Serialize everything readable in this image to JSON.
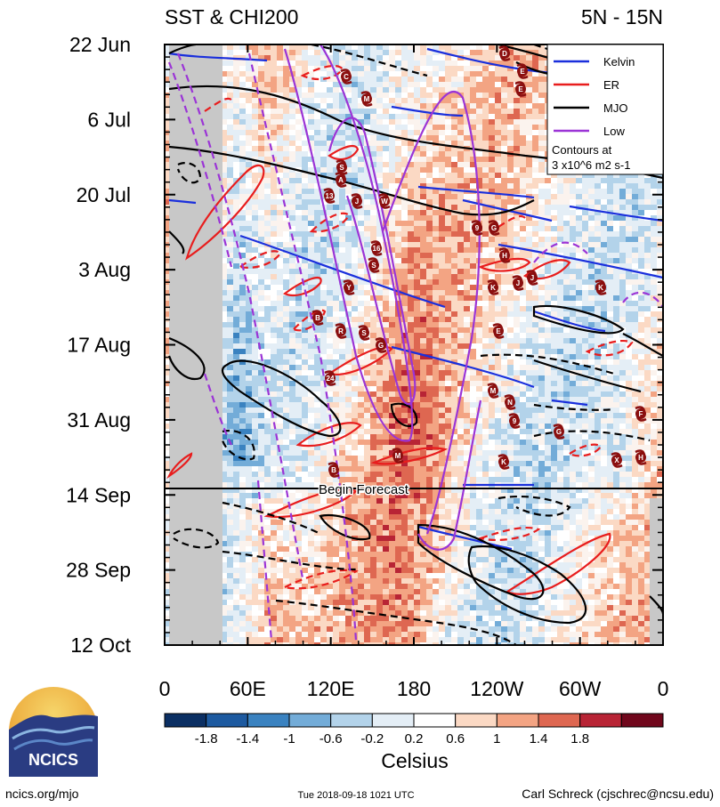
{
  "chart_data": {
    "type": "heatmap",
    "title_left": "SST & CHI200",
    "title_right": "5N - 15N",
    "x_ticks": [
      "0",
      "60E",
      "120E",
      "180",
      "120W",
      "60W",
      "0"
    ],
    "y_ticks": [
      "22 Jun",
      "6 Jul",
      "20 Jul",
      "3 Aug",
      "17 Aug",
      "31 Aug",
      "14 Sep",
      "28 Sep",
      "12 Oct"
    ],
    "colorbar": {
      "label": "Celsius",
      "ticks": [
        "-1.8",
        "-1.4",
        "-1",
        "-0.6",
        "-0.2",
        "0.2",
        "0.6",
        "1",
        "1.4",
        "1.8"
      ],
      "colors": [
        "#0b2f63",
        "#1d5aa0",
        "#3a82c0",
        "#73acd8",
        "#b3d3ea",
        "#e4eef6",
        "#ffffff",
        "#fbd9c4",
        "#f3a483",
        "#de6751",
        "#b82435",
        "#70071c"
      ]
    },
    "legend": [
      {
        "label": "Kelvin",
        "color": "#1a2fdc"
      },
      {
        "label": "ER",
        "color": "#e81d1d"
      },
      {
        "label": "MJO",
        "color": "#000000"
      },
      {
        "label": "Low",
        "color": "#9b34d6"
      }
    ],
    "legend_note": [
      "Contours at",
      "3 x10^6 m2 s-1"
    ],
    "forecast_label": "Begin Forecast",
    "storm_labels": [
      "D",
      "E",
      "E",
      "C",
      "M",
      "S",
      "A",
      "13",
      "J",
      "W",
      "9",
      "G",
      "16",
      "S",
      "H",
      "Y",
      "K",
      "J",
      "J",
      "B",
      "K",
      "R",
      "S",
      "G",
      "E",
      "24",
      "M",
      "N",
      "9",
      "G",
      "F",
      "M",
      "B",
      "K",
      "H",
      "X"
    ]
  },
  "logo": {
    "text": "NCICS"
  },
  "footer": {
    "url": "ncics.org/mjo",
    "timestamp": "Tue 2018-09-18 1021 UTC",
    "author": "Carl Schreck (cjschrec@ncsu.edu)"
  }
}
